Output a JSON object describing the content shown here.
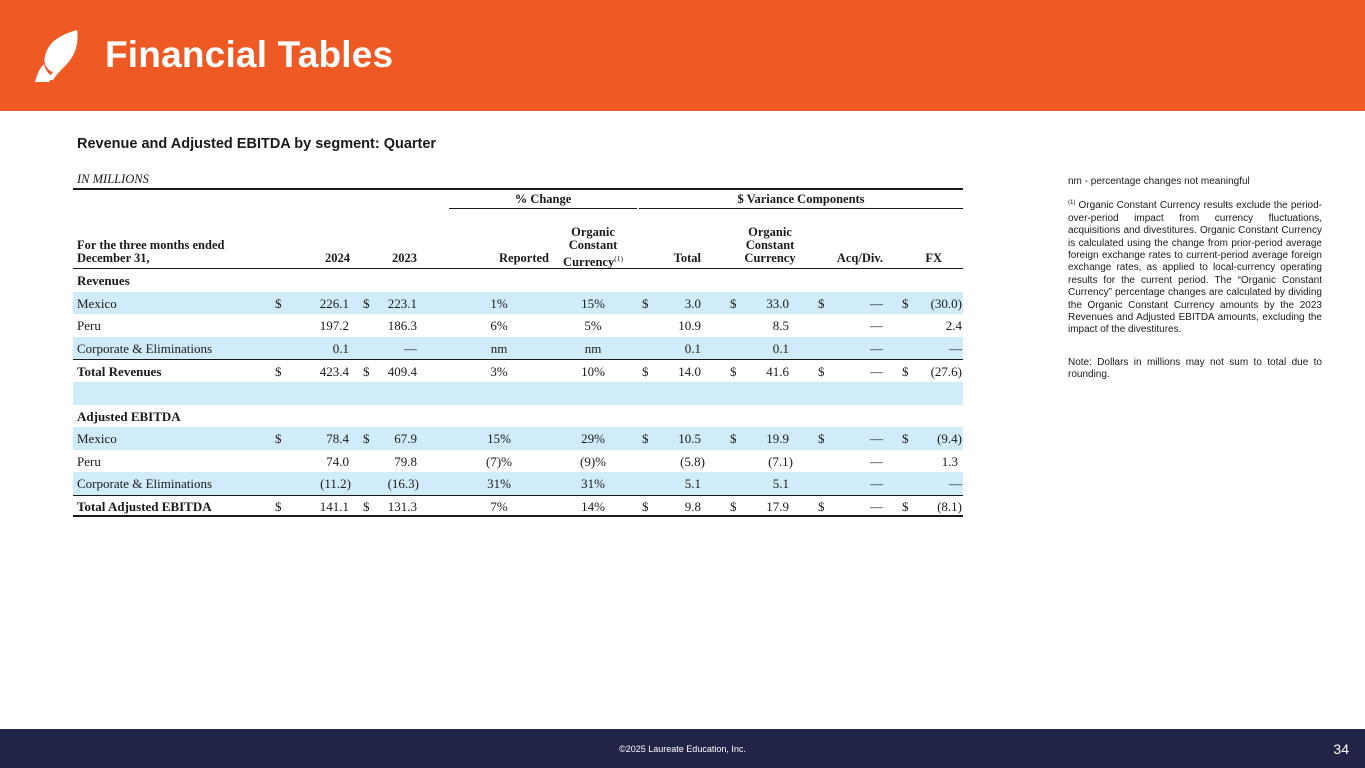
{
  "header": {
    "title": "Financial Tables",
    "logo_icon": "leaf-icon"
  },
  "subtitle": "Revenue and Adjusted EBITDA by segment: Quarter",
  "units": "IN MILLIONS",
  "table": {
    "group_headers": {
      "pct_change": "% Change",
      "variance": "$ Variance Components"
    },
    "columns": {
      "period_1": "For the three months ended",
      "period_2": "December 31,",
      "y2024": "2024",
      "y2023": "2023",
      "reported": "Reported",
      "occ_1": "Organic",
      "occ_2": "Constant",
      "occ_3": "Currency",
      "footnote_mark": "(1)",
      "total": "Total",
      "vocc_1": "Organic",
      "vocc_2": "Constant",
      "vocc_3": "Currency",
      "acq": "Acq/Div.",
      "fx": "FX"
    },
    "sections": {
      "revenues": "Revenues",
      "ebitda": "Adjusted EBITDA"
    },
    "dollar_sign": "$",
    "revenue_rows": [
      {
        "label": "Mexico",
        "y2024": "226.1",
        "y2023": "223.1",
        "reported": "1%",
        "occ": "15%",
        "total": "3.0",
        "vocc": "33.0",
        "acq": "—",
        "fx": "(30.0)"
      },
      {
        "label": "Peru",
        "y2024": "197.2",
        "y2023": "186.3",
        "reported": "6%",
        "occ": "5%",
        "total": "10.9",
        "vocc": "8.5",
        "acq": "—",
        "fx": "2.4"
      },
      {
        "label": "Corporate & Eliminations",
        "y2024": "0.1",
        "y2023": "—",
        "reported": "nm",
        "occ": "nm",
        "total": "0.1",
        "vocc": "0.1",
        "acq": "—",
        "fx": "—"
      },
      {
        "label": "Total Revenues",
        "y2024": "423.4",
        "y2023": "409.4",
        "reported": "3%",
        "occ": "10%",
        "total": "14.0",
        "vocc": "41.6",
        "acq": "—",
        "fx": "(27.6)"
      }
    ],
    "ebitda_rows": [
      {
        "label": "Mexico",
        "y2024": "78.4",
        "y2023": "67.9",
        "reported": "15%",
        "occ": "29%",
        "total": "10.5",
        "vocc": "19.9",
        "acq": "—",
        "fx": "(9.4)"
      },
      {
        "label": "Peru",
        "y2024": "74.0",
        "y2023": "79.8",
        "reported": "(7)%",
        "occ": "(9)%",
        "total": "(5.8)",
        "vocc": "(7.1)",
        "acq": "—",
        "fx": "1.3"
      },
      {
        "label": "Corporate & Eliminations",
        "y2024": "(11.2)",
        "y2023": "(16.3)",
        "reported": "31%",
        "occ": "31%",
        "total": "5.1",
        "vocc": "5.1",
        "acq": "—",
        "fx": "—"
      },
      {
        "label": "Total Adjusted EBITDA",
        "y2024": "141.1",
        "y2023": "131.3",
        "reported": "7%",
        "occ": "14%",
        "total": "9.8",
        "vocc": "17.9",
        "acq": "—",
        "fx": "(8.1)"
      }
    ]
  },
  "notes": {
    "nm": "nm - percentage changes not meaningful",
    "fn_mark": "(1)",
    "fn_text": " Organic Constant Currency results exclude the period-over-period impact from currency fluctuations, acquisitions and divestitures. Organic Constant Currency is calculated using the change from prior-period average foreign exchange rates to current-period average foreign exchange rates, as applied to local-currency operating results for the current period. The “Organic Constant Currency” percentage changes are calculated by dividing the Organic Constant Currency amounts by the 2023 Revenues and Adjusted EBITDA amounts, excluding the impact of the divestitures.",
    "rounding": "Note:  Dollars in millions may not sum to total due to rounding."
  },
  "footer": {
    "copyright": "©2025 Laureate Education, Inc.",
    "page": "34"
  },
  "colors": {
    "header_bg": "#ef5a24",
    "footer_bg": "#222447",
    "row_shade": "#d0ecfa"
  }
}
